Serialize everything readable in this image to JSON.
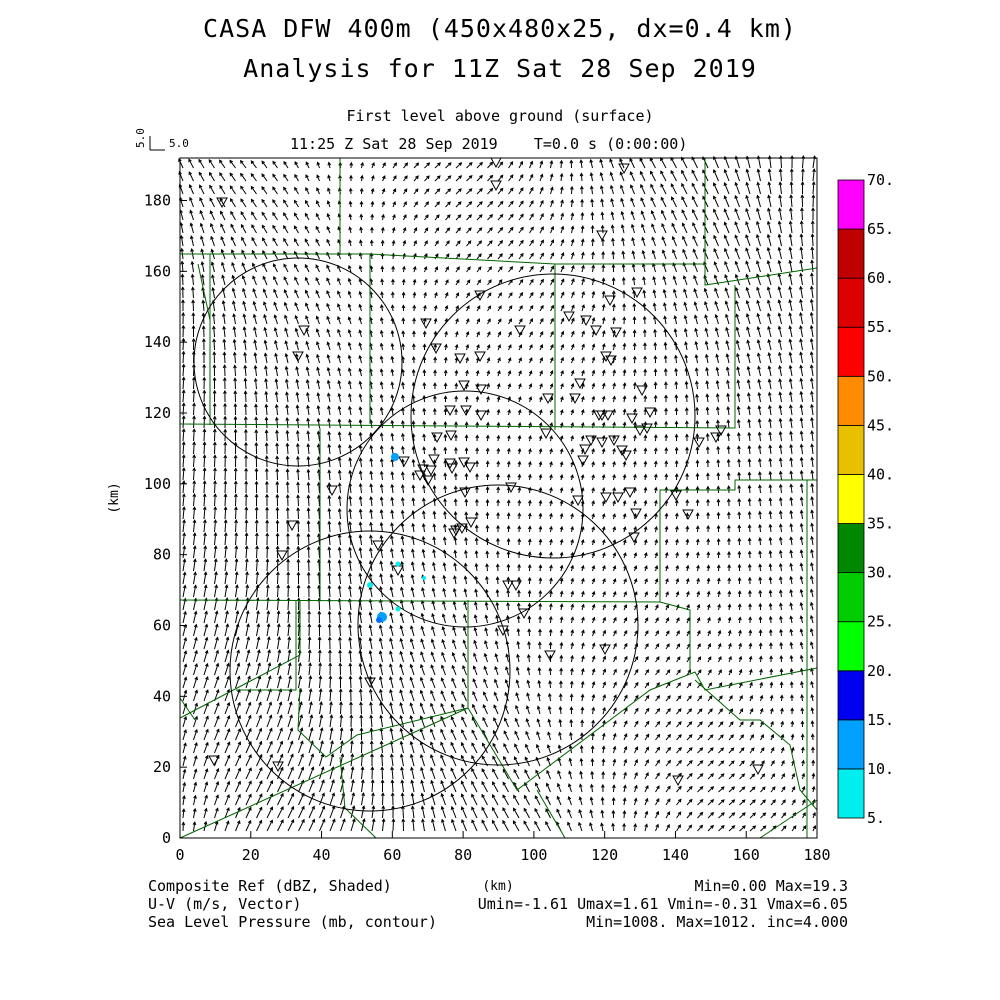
{
  "header": {
    "title_line1": "CASA DFW 400m (450x480x25, dx=0.4 km)",
    "title_line2": "Analysis for 11Z Sat 28 Sep 2019",
    "level": "First level above ground (surface)",
    "time": "11:25 Z Sat 28 Sep 2019    T=0.0 s (0:00:00)",
    "ref_vector_vertical": "5.0",
    "ref_vector_horizontal": "5.0"
  },
  "axes": {
    "x_label": "(km)",
    "y_label": "(km)",
    "x_ticks": [
      "0",
      "20",
      "40",
      "60",
      "80",
      "100",
      "120",
      "140",
      "160",
      "180"
    ],
    "y_ticks": [
      "0",
      "20",
      "40",
      "60",
      "80",
      "100",
      "120",
      "140",
      "160",
      "180"
    ],
    "x_range": [
      0,
      180
    ],
    "y_range": [
      0,
      192
    ]
  },
  "colorbar": {
    "labels": [
      "5.",
      "10.",
      "15.",
      "20.",
      "25.",
      "30.",
      "35.",
      "40.",
      "45.",
      "50.",
      "55.",
      "60.",
      "65.",
      "70."
    ],
    "colors": [
      "#00eeee",
      "#00a0ff",
      "#0000f0",
      "#00ff00",
      "#00cc00",
      "#008800",
      "#ffff00",
      "#e8c000",
      "#ff8c00",
      "#ff0000",
      "#dd0000",
      "#c00000",
      "#ff00ff"
    ]
  },
  "footer": {
    "field1_name": "Composite Ref (dBZ, Shaded)",
    "field1_stats": "Min=0.00 Max=19.3",
    "x_unit": "(km)",
    "field2_name": "U-V (m/s, Vector)",
    "field2_stats": "Umin=-1.61 Umax=1.61 Vmin=-0.31 Vmax=6.05",
    "field3_name": "Sea Level Pressure (mb, contour)",
    "field3_stats": "Min=1008. Max=1012. inc=4.000"
  },
  "colors": {
    "county_lines": "#006400",
    "vectors": "#000000",
    "radar_rings": "#000000"
  }
}
